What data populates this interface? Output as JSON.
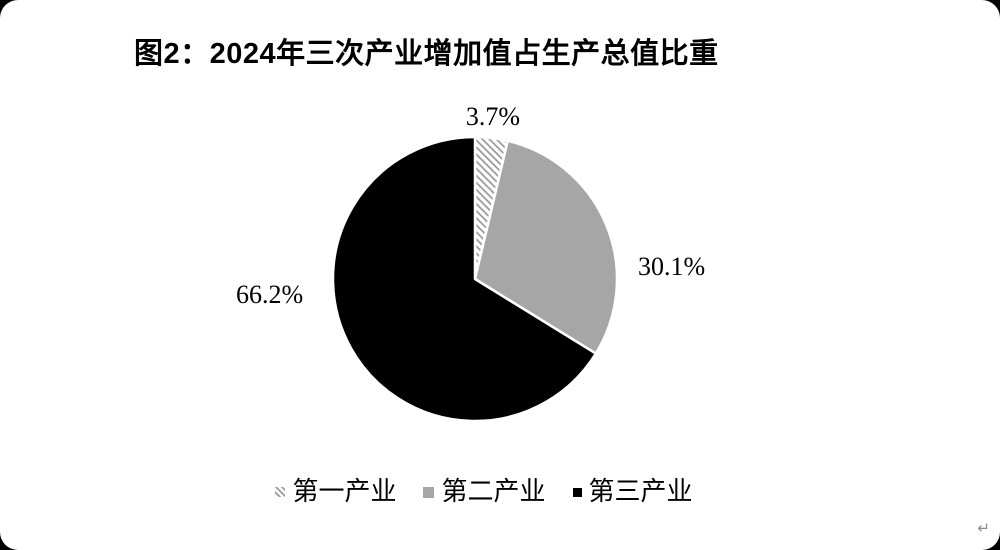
{
  "title": "图2：2024年三次产业增加值占生产总值比重",
  "chart_data": {
    "type": "pie",
    "title": "图2：2024年三次产业增加值占生产总值比重",
    "unit": "%",
    "start_angle_deg": 0,
    "direction": "clockwise",
    "legend_position": "bottom",
    "series": [
      {
        "name": "第一产业",
        "value": 3.7,
        "label": "3.7%",
        "fill": "hatch"
      },
      {
        "name": "第二产业",
        "value": 30.1,
        "label": "30.1%",
        "fill": "#a6a6a6"
      },
      {
        "name": "第三产业",
        "value": 66.2,
        "label": "66.2%",
        "fill": "#000000"
      }
    ]
  },
  "colors": {
    "hatch_line": "#9c9c9c",
    "slice_gray": "#a6a6a6",
    "slice_black": "#000000",
    "page_background": "#ffffff",
    "slice_gap": "#ffffff"
  },
  "misc": {
    "paragraph_mark": "↵"
  }
}
